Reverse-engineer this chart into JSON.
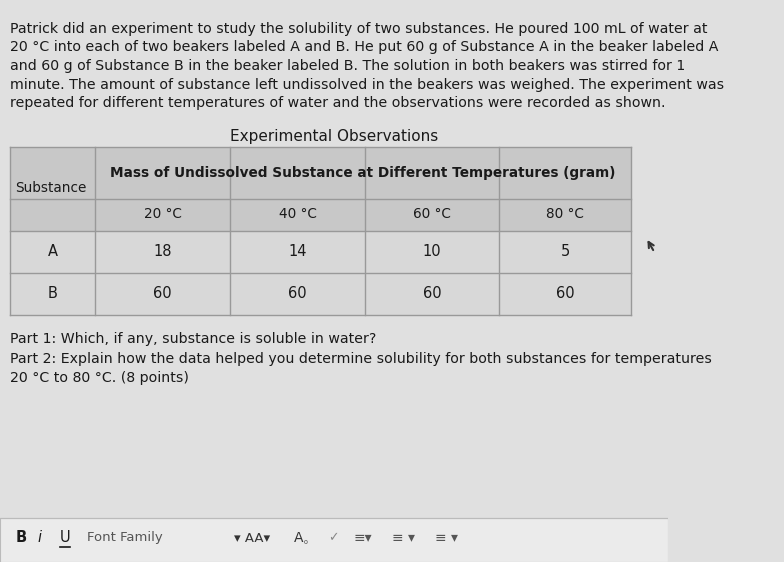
{
  "background_color": "#e0e0e0",
  "paragraph_text_lines": [
    "Patrick did an experiment to study the solubility of two substances. He poured 100 mL of water at",
    "20 °C into each of two beakers labeled A and B. He put 60 g of Substance A in the beaker labeled A",
    "and 60 g of Substance B in the beaker labeled B. The solution in both beakers was stirred for 1",
    "minute. The amount of substance left undissolved in the beakers was weighed. The experiment was",
    "repeated for different temperatures of water and the observations were recorded as shown."
  ],
  "table_title": "Experimental Observations",
  "col_header_main": "Mass of Undissolved Substance at Different Temperatures (gram)",
  "col_header_sub": [
    "20 °C",
    "40 °C",
    "60 °C",
    "80 °C"
  ],
  "row_label_header": "Substance",
  "rows": [
    {
      "label": "A",
      "values": [
        "18",
        "14",
        "10",
        "5"
      ]
    },
    {
      "label": "B",
      "values": [
        "60",
        "60",
        "60",
        "60"
      ]
    }
  ],
  "table_header_bg": "#c8c8c8",
  "table_data_bg": "#d8d8d8",
  "table_border_color": "#999999",
  "part1_text": "Part 1: Which, if any, substance is soluble in water?",
  "part2_text_lines": [
    "Part 2: Explain how the data helped you determine solubility for both substances for temperatures",
    "20 °C to 80 °C. (8 points)"
  ],
  "toolbar_bg": "#ebebeb",
  "toolbar_border": "#bbbbbb",
  "font_size_para": 10.2,
  "font_size_table_title": 11.0,
  "font_size_table_header": 9.8,
  "font_size_table_data": 10.5,
  "font_size_parts": 10.2,
  "font_size_toolbar": 10.5
}
